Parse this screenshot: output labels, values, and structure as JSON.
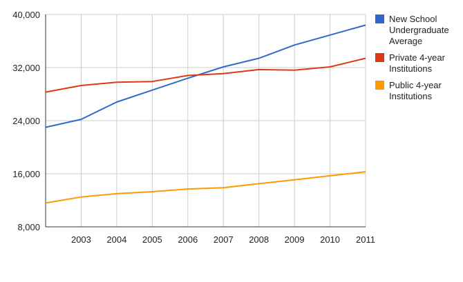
{
  "chart_data": {
    "type": "line",
    "x": [
      2002,
      2003,
      2004,
      2005,
      2006,
      2007,
      2008,
      2009,
      2010,
      2011
    ],
    "x_tick_labels": [
      "2003",
      "2004",
      "2005",
      "2006",
      "2007",
      "2008",
      "2009",
      "2010",
      "2011"
    ],
    "y_ticks": [
      8000,
      16000,
      24000,
      32000,
      40000
    ],
    "y_tick_labels": [
      "8,000",
      "16,000",
      "24,000",
      "32,000",
      "40,000"
    ],
    "ylim": [
      8000,
      40000
    ],
    "grid": true,
    "legend_position": "right",
    "series": [
      {
        "name": "New School\nUndergraduate\nAverage",
        "color": "#3366cc",
        "values": [
          23000,
          24200,
          26800,
          28600,
          30400,
          32100,
          33400,
          35400,
          36900,
          38400
        ]
      },
      {
        "name": "Private 4-year\nInstitutions",
        "color": "#dc3912",
        "values": [
          28300,
          29300,
          29800,
          29900,
          30800,
          31100,
          31700,
          31600,
          32100,
          33400
        ]
      },
      {
        "name": "Public 4-year\nInstitutions",
        "color": "#ff9900",
        "values": [
          11600,
          12500,
          13000,
          13300,
          13700,
          13900,
          14500,
          15100,
          15700,
          16300
        ]
      }
    ]
  }
}
